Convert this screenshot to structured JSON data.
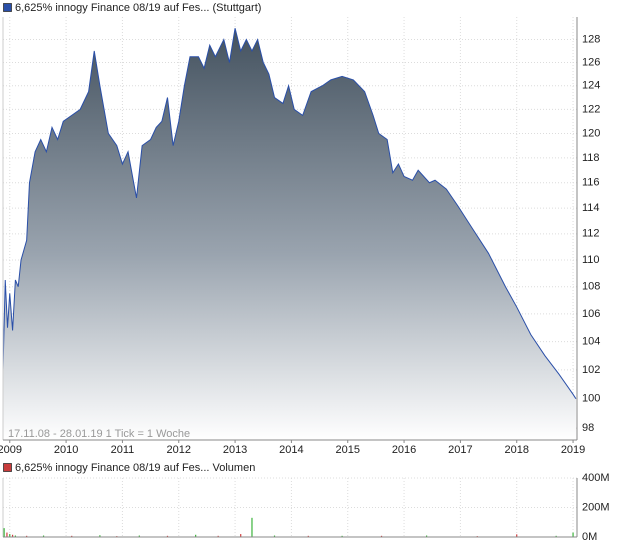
{
  "chart_data": [
    {
      "type": "area",
      "log_y": true,
      "grid": true,
      "note": "17.11.08 - 28.01.19   1 Tick = 1 Woche",
      "xlim": [
        2008.88,
        2019.07
      ],
      "xticks": [
        {
          "value": 2009,
          "label": "2009"
        },
        {
          "value": 2010,
          "label": "2010"
        },
        {
          "value": 2011,
          "label": "2011"
        },
        {
          "value": 2012,
          "label": "2012"
        },
        {
          "value": 2013,
          "label": "2013"
        },
        {
          "value": 2014,
          "label": "2014"
        },
        {
          "value": 2015,
          "label": "2015"
        },
        {
          "value": 2016,
          "label": "2016"
        },
        {
          "value": 2017,
          "label": "2017"
        },
        {
          "value": 2018,
          "label": "2018"
        },
        {
          "value": 2019,
          "label": "2019"
        }
      ],
      "ylim": [
        97.2,
        130
      ],
      "yticks": [
        98,
        100,
        102,
        104,
        106,
        108,
        110,
        112,
        114,
        116,
        118,
        120,
        122,
        124,
        126,
        128
      ],
      "series": [
        {
          "name": "6,625% innogy Finance 08/19 auf Fes... (Stuttgart)",
          "color": "#2a4fa8",
          "x": [
            2008.88,
            2008.92,
            2008.96,
            2009.0,
            2009.05,
            2009.1,
            2009.15,
            2009.2,
            2009.3,
            2009.35,
            2009.45,
            2009.55,
            2009.65,
            2009.75,
            2009.85,
            2009.95,
            2010.1,
            2010.25,
            2010.4,
            2010.5,
            2010.6,
            2010.75,
            2010.9,
            2011.0,
            2011.1,
            2011.2,
            2011.25,
            2011.35,
            2011.5,
            2011.6,
            2011.7,
            2011.8,
            2011.9,
            2012.0,
            2012.1,
            2012.2,
            2012.35,
            2012.45,
            2012.55,
            2012.65,
            2012.8,
            2012.9,
            2013.0,
            2013.1,
            2013.2,
            2013.3,
            2013.4,
            2013.5,
            2013.6,
            2013.7,
            2013.85,
            2013.95,
            2014.05,
            2014.2,
            2014.35,
            2014.55,
            2014.7,
            2014.9,
            2015.1,
            2015.3,
            2015.45,
            2015.55,
            2015.7,
            2015.8,
            2015.9,
            2016.0,
            2016.15,
            2016.25,
            2016.45,
            2016.55,
            2016.75,
            2016.95,
            2017.2,
            2017.5,
            2017.8,
            2018.0,
            2018.25,
            2018.5,
            2018.75,
            2019.0,
            2019.05
          ],
          "values": [
            102,
            108.5,
            105,
            107.5,
            104.8,
            108.5,
            108,
            110,
            111.5,
            116,
            118.5,
            119.5,
            118.5,
            120.5,
            119.5,
            121,
            121.5,
            122,
            123.5,
            127,
            124,
            120,
            119,
            117.5,
            118.5,
            116,
            114.8,
            119,
            119.5,
            120.5,
            121,
            123,
            119,
            121,
            124,
            126.5,
            126.5,
            125.5,
            127.5,
            126.5,
            128,
            126,
            129,
            127,
            128,
            127,
            128,
            126,
            125,
            123,
            122.5,
            124,
            122,
            121.5,
            123.5,
            124,
            124.5,
            124.8,
            124.5,
            123.5,
            121.5,
            120,
            119.5,
            116.8,
            117.5,
            116.5,
            116.2,
            117,
            116,
            116.2,
            115.5,
            114.2,
            112.5,
            110.5,
            108,
            106.5,
            104.5,
            103,
            101.7,
            100.3,
            100
          ]
        }
      ]
    },
    {
      "type": "bar",
      "ylim": [
        0,
        400
      ],
      "yticks": [
        {
          "value": 0,
          "label": "0M"
        },
        {
          "value": 200,
          "label": "200M"
        },
        {
          "value": 400,
          "label": "400M"
        }
      ],
      "series": [
        {
          "name": "6,625% innogy Finance 08/19 auf Fes... Volumen",
          "color": "#c83c3c",
          "x": [
            2008.9,
            2008.95,
            2009.0,
            2009.05,
            2009.1,
            2009.3,
            2009.6,
            2010.1,
            2010.6,
            2010.9,
            2011.3,
            2011.8,
            2012.3,
            2012.7,
            2013.1,
            2013.3,
            2013.7,
            2014.3,
            2014.9,
            2015.6,
            2016.4,
            2017.3,
            2018.0,
            2018.7,
            2019.0
          ],
          "values": [
            60,
            30,
            20,
            15,
            10,
            8,
            10,
            8,
            12,
            6,
            10,
            8,
            15,
            8,
            20,
            130,
            10,
            8,
            8,
            8,
            10,
            6,
            18,
            8,
            30
          ],
          "colors": [
            "#3cb43c",
            "#d04040",
            "#3cb43c",
            "#d04040",
            "#3cb43c",
            "#d04040",
            "#3cb43c",
            "#d04040",
            "#3cb43c",
            "#d04040",
            "#3cb43c",
            "#d04040",
            "#3cb43c",
            "#d04040",
            "#d04040",
            "#3cb43c",
            "#3cb43c",
            "#d04040",
            "#3cb43c",
            "#d04040",
            "#3cb43c",
            "#d04040",
            "#d04040",
            "#3cb43c",
            "#3cb43c"
          ]
        }
      ]
    }
  ]
}
